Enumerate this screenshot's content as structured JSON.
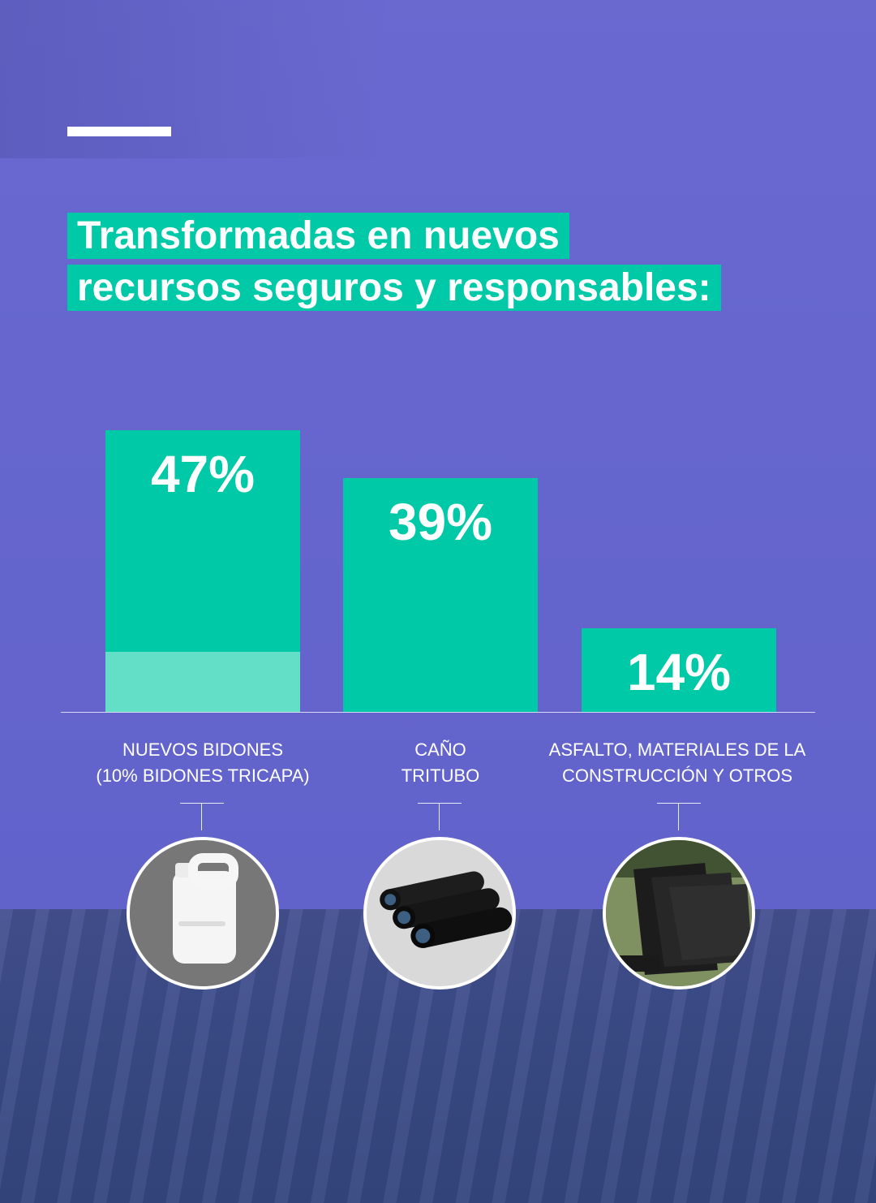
{
  "heading": {
    "line1": "Transformadas en nuevos",
    "line2": "recursos seguros y responsables:"
  },
  "chart_data": {
    "type": "bar",
    "categories": [
      "NUEVOS BIDONES\n(10% BIDONES TRICAPA)",
      "CAÑO\nTRITUBO",
      "ASFALTO, MATERIALES DE LA\nCONSTRUCCIÓN Y OTROS"
    ],
    "values": [
      47,
      39,
      14
    ],
    "value_labels": [
      "47%",
      "39%",
      "14%"
    ],
    "sub_values": [
      10,
      null,
      null
    ],
    "ylim": [
      0,
      47
    ],
    "grid": false,
    "colors": {
      "bar": "#00c9a7",
      "subbar": "#63dfc8",
      "background": "#6464cf",
      "field": "#3a4b86"
    }
  },
  "icons": [
    "jerrycan-icon",
    "pipes-icon",
    "panels-icon"
  ]
}
